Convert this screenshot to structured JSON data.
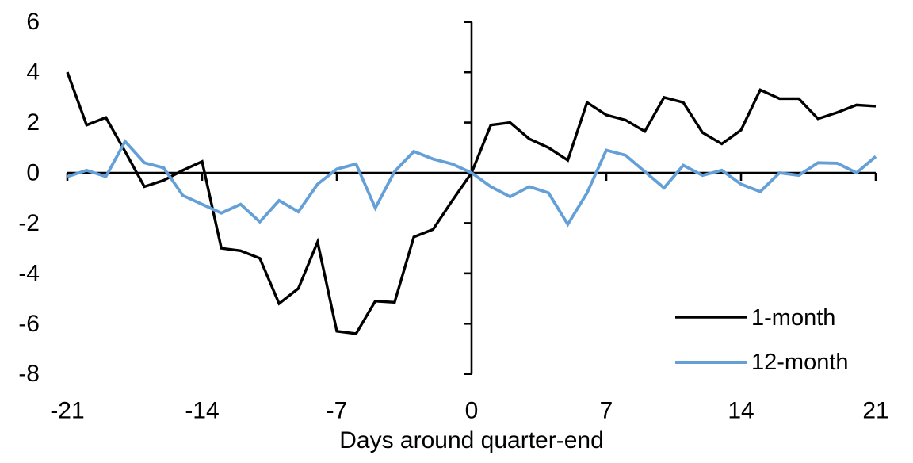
{
  "chart_data": {
    "type": "line",
    "title": "",
    "xlabel": "Days around quarter-end",
    "ylabel": "",
    "xlim": [
      -21,
      21
    ],
    "ylim": [
      -8,
      6
    ],
    "x_ticks": [
      -21,
      -14,
      -7,
      0,
      7,
      14,
      21
    ],
    "y_ticks": [
      6,
      4,
      2,
      0,
      -2,
      -4,
      -6,
      -8
    ],
    "grid": false,
    "legend_position": "lower-right",
    "background": "#ffffff",
    "text_color": "#000000",
    "x": [
      -21,
      -20,
      -19,
      -18,
      -17,
      -16,
      -15,
      -14,
      -13,
      -12,
      -11,
      -10,
      -9,
      -8,
      -7,
      -6,
      -5,
      -4,
      -3,
      -2,
      -1,
      0,
      1,
      2,
      3,
      4,
      5,
      6,
      7,
      8,
      9,
      10,
      11,
      12,
      13,
      14,
      15,
      16,
      17,
      18,
      19,
      20,
      21
    ],
    "series": [
      {
        "name": "1-month",
        "color": "#000000",
        "values": [
          4.0,
          1.9,
          2.2,
          0.85,
          -0.55,
          -0.3,
          0.1,
          0.45,
          -3.0,
          -3.1,
          -3.4,
          -5.2,
          -4.6,
          -2.75,
          -6.3,
          -6.4,
          -5.1,
          -5.15,
          -2.55,
          -2.25,
          -1.1,
          0.0,
          1.9,
          2.0,
          1.35,
          1.0,
          0.5,
          2.8,
          2.3,
          2.1,
          1.65,
          3.0,
          2.8,
          1.6,
          1.15,
          1.7,
          3.3,
          2.95,
          2.95,
          2.15,
          2.4,
          2.7,
          2.65
        ]
      },
      {
        "name": "12-month",
        "color": "#64A0D7",
        "values": [
          -0.15,
          0.1,
          -0.15,
          1.25,
          0.4,
          0.2,
          -0.9,
          -1.25,
          -1.6,
          -1.25,
          -1.95,
          -1.1,
          -1.55,
          -0.45,
          0.15,
          0.35,
          -1.4,
          0.05,
          0.85,
          0.55,
          0.35,
          0.0,
          -0.55,
          -0.95,
          -0.55,
          -0.8,
          -2.05,
          -0.8,
          0.9,
          0.7,
          0.05,
          -0.6,
          0.3,
          -0.1,
          0.1,
          -0.45,
          -0.75,
          0.0,
          -0.1,
          0.4,
          0.38,
          0.0,
          0.65
        ]
      }
    ]
  }
}
